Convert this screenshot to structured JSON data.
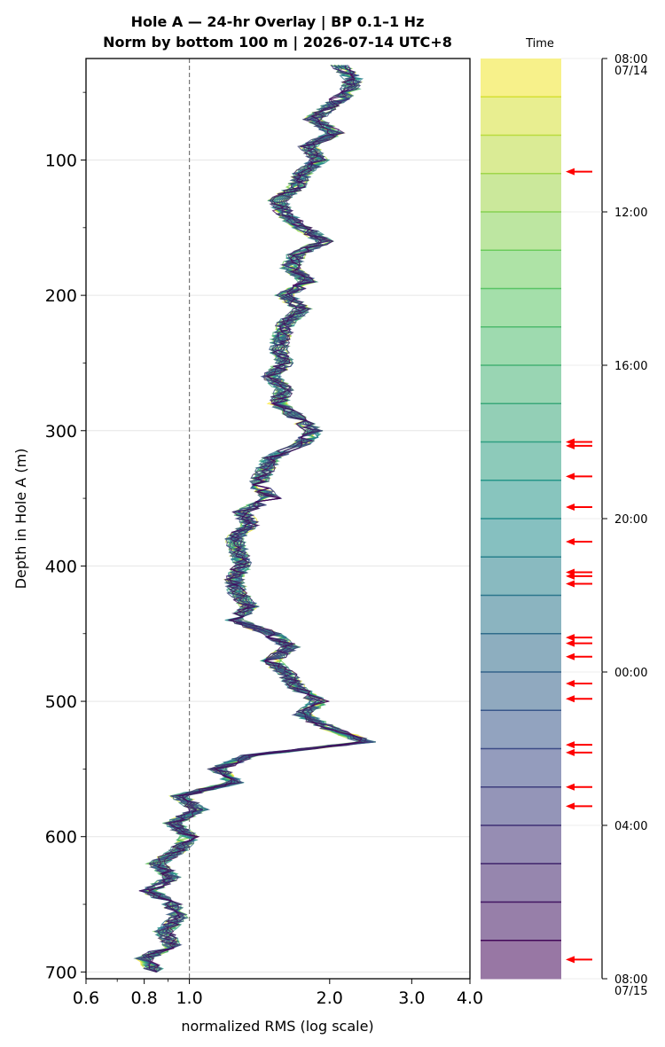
{
  "chart_data": {
    "type": "line",
    "title_line1": "Hole A — 24-hr Overlay  |  BP 0.1–1 Hz",
    "title_line2": "Norm by bottom 100 m  |  2026-07-14 UTC+8",
    "xlabel": "normalized RMS  (log scale)",
    "ylabel": "Depth in Hole A (m)",
    "x_scale": "log",
    "xlim": [
      0.6,
      4.0
    ],
    "ylim": [
      705,
      25
    ],
    "x_ticks": [
      {
        "value": 0.6,
        "label": "0.6"
      },
      {
        "value": 0.8,
        "label": "0.8"
      },
      {
        "value": 1.0,
        "label": "1.0"
      },
      {
        "value": 2.0,
        "label": "2.0"
      },
      {
        "value": 3.0,
        "label": "3.0"
      },
      {
        "value": 4.0,
        "label": "4.0"
      }
    ],
    "y_ticks": [
      {
        "value": 100,
        "label": "100"
      },
      {
        "value": 200,
        "label": "200"
      },
      {
        "value": 300,
        "label": "300"
      },
      {
        "value": 400,
        "label": "400"
      },
      {
        "value": 500,
        "label": "500"
      },
      {
        "value": 600,
        "label": "600"
      },
      {
        "value": 700,
        "label": "700"
      }
    ],
    "reference_line_x": 1.0,
    "grid": "horizontal",
    "colormap": "viridis",
    "series_count": 24,
    "base_profile": {
      "depth": [
        30,
        40,
        50,
        60,
        70,
        80,
        90,
        100,
        110,
        120,
        130,
        140,
        150,
        160,
        170,
        180,
        190,
        200,
        210,
        220,
        230,
        240,
        250,
        260,
        270,
        280,
        290,
        300,
        310,
        320,
        330,
        340,
        350,
        360,
        370,
        380,
        390,
        400,
        410,
        420,
        430,
        440,
        450,
        460,
        470,
        480,
        490,
        500,
        510,
        520,
        530,
        540,
        550,
        560,
        570,
        580,
        590,
        600,
        610,
        620,
        630,
        640,
        650,
        660,
        670,
        680,
        690,
        700
      ],
      "rms": [
        2.1,
        2.25,
        2.2,
        2.0,
        1.85,
        2.05,
        1.8,
        1.9,
        1.75,
        1.7,
        1.55,
        1.6,
        1.75,
        1.95,
        1.7,
        1.65,
        1.8,
        1.6,
        1.75,
        1.62,
        1.58,
        1.55,
        1.6,
        1.5,
        1.6,
        1.55,
        1.7,
        1.85,
        1.75,
        1.5,
        1.45,
        1.4,
        1.5,
        1.3,
        1.35,
        1.25,
        1.28,
        1.3,
        1.25,
        1.27,
        1.35,
        1.25,
        1.5,
        1.65,
        1.5,
        1.62,
        1.7,
        1.9,
        1.75,
        2.0,
        2.4,
        1.35,
        1.15,
        1.25,
        0.95,
        1.05,
        0.92,
        1.0,
        0.95,
        0.85,
        0.92,
        0.82,
        0.92,
        0.95,
        0.88,
        0.92,
        0.8,
        0.85
      ]
    },
    "colorbar": {
      "title": "Time",
      "ticks": [
        {
          "hour": 0,
          "label": "08:00",
          "sublabel": "07/14"
        },
        {
          "hour": 4,
          "label": "12:00",
          "sublabel": ""
        },
        {
          "hour": 8,
          "label": "16:00",
          "sublabel": ""
        },
        {
          "hour": 12,
          "label": "20:00",
          "sublabel": ""
        },
        {
          "hour": 16,
          "label": "00:00",
          "sublabel": ""
        },
        {
          "hour": 20,
          "label": "04:00",
          "sublabel": ""
        },
        {
          "hour": 24,
          "label": "08:00",
          "sublabel": "07/15"
        }
      ],
      "segments": 24,
      "arrow_hours": [
        2.95,
        10.0,
        10.1,
        10.9,
        11.7,
        12.6,
        13.4,
        13.5,
        13.7,
        15.1,
        15.25,
        15.6,
        16.3,
        16.7,
        17.9,
        18.1,
        19.0,
        19.5,
        23.5
      ],
      "arrow_color": "#ff0000"
    }
  }
}
